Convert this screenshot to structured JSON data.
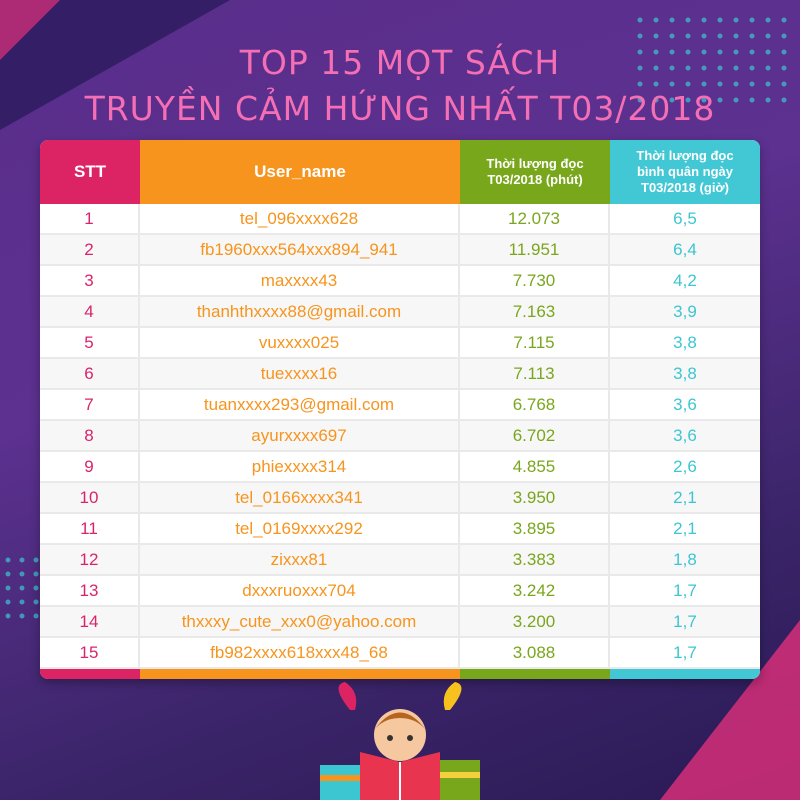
{
  "title": {
    "line1": "TOP 15 MỌT SÁCH",
    "line2": "TRUYỀN CẢM HỨNG NHẤT T03/2018"
  },
  "columns": [
    "STT",
    "User_name",
    "Thời lượng đọc T03/2018 (phút)",
    "Thời lượng đọc bình quân ngày T03/2018 (giờ)"
  ],
  "colors": {
    "stt": "#dc2465",
    "user": "#f7941d",
    "minutes": "#79a71c",
    "hours": "#42c8d4",
    "title": "#f46fb4"
  },
  "rows": [
    [
      "1",
      "tel_096xxxx628",
      "12.073",
      "6,5"
    ],
    [
      "2",
      "fb1960xxx564xxx894_941",
      "11.951",
      "6,4"
    ],
    [
      "3",
      "maxxxx43",
      "7.730",
      "4,2"
    ],
    [
      "4",
      "thanhthxxxx88@gmail.com",
      "7.163",
      "3,9"
    ],
    [
      "5",
      "vuxxxx025",
      "7.115",
      "3,8"
    ],
    [
      "6",
      "tuexxxx16",
      "7.113",
      "3,8"
    ],
    [
      "7",
      "tuanxxxx293@gmail.com",
      "6.768",
      "3,6"
    ],
    [
      "8",
      "ayurxxxx697",
      "6.702",
      "3,6"
    ],
    [
      "9",
      "phiexxxx314",
      "4.855",
      "2,6"
    ],
    [
      "10",
      "tel_0166xxxx341",
      "3.950",
      "2,1"
    ],
    [
      "11",
      "tel_0169xxxx292",
      "3.895",
      "2,1"
    ],
    [
      "12",
      "zixxx81",
      "3.383",
      "1,8"
    ],
    [
      "13",
      "dxxxruoxxx704",
      "3.242",
      "1,7"
    ],
    [
      "14",
      "thxxxy_cute_xxx0@yahoo.com",
      "3.200",
      "1,7"
    ],
    [
      "15",
      "fb982xxxx618xxx48_68",
      "3.088",
      "1,7"
    ]
  ]
}
